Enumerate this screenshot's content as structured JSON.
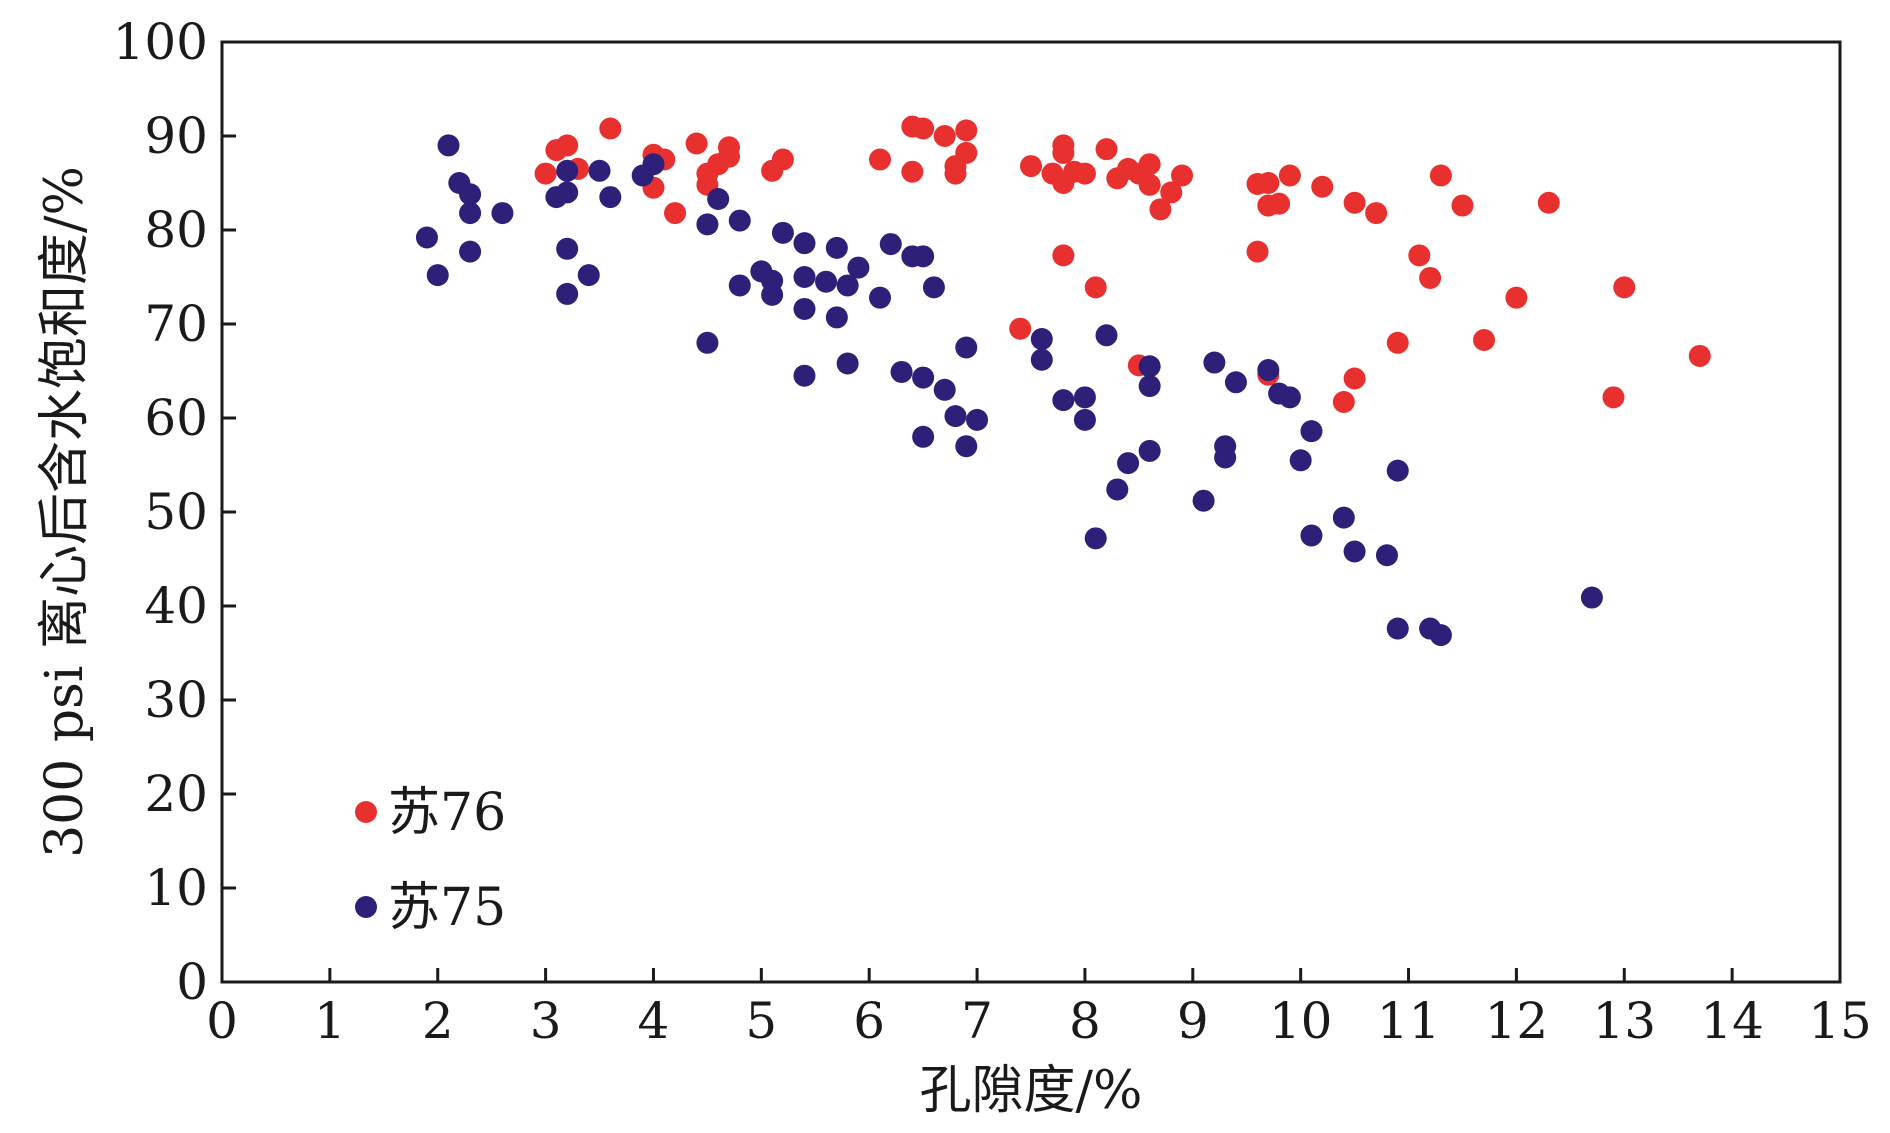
{
  "chart_data": {
    "type": "scatter",
    "xlabel": "孔隙度/%",
    "ylabel": "300 psi 离心后含水饱和度/%",
    "xlim": [
      0,
      15
    ],
    "ylim": [
      0,
      100
    ],
    "xticks": [
      0,
      1,
      2,
      3,
      4,
      5,
      6,
      7,
      8,
      9,
      10,
      11,
      12,
      13,
      14,
      15
    ],
    "yticks": [
      0,
      10,
      20,
      30,
      40,
      50,
      60,
      70,
      80,
      90,
      100
    ],
    "legend_position": "bottom-left",
    "series": [
      {
        "name": "苏76",
        "color": "#e8312f",
        "points": [
          [
            3.0,
            86.0
          ],
          [
            3.1,
            88.5
          ],
          [
            3.2,
            89.0
          ],
          [
            3.3,
            86.5
          ],
          [
            3.6,
            90.8
          ],
          [
            4.0,
            88.0
          ],
          [
            4.1,
            87.5
          ],
          [
            4.0,
            84.5
          ],
          [
            4.2,
            81.8
          ],
          [
            4.4,
            89.2
          ],
          [
            4.5,
            86.0
          ],
          [
            4.5,
            84.8
          ],
          [
            4.6,
            87.0
          ],
          [
            4.7,
            88.8
          ],
          [
            4.7,
            87.8
          ],
          [
            5.1,
            86.3
          ],
          [
            5.2,
            87.5
          ],
          [
            6.1,
            87.5
          ],
          [
            6.4,
            86.2
          ],
          [
            6.4,
            91.0
          ],
          [
            6.5,
            90.8
          ],
          [
            6.7,
            90.0
          ],
          [
            6.8,
            86.0
          ],
          [
            6.8,
            86.8
          ],
          [
            6.9,
            90.6
          ],
          [
            6.9,
            88.2
          ],
          [
            7.5,
            86.8
          ],
          [
            7.7,
            86.0
          ],
          [
            7.8,
            88.2
          ],
          [
            7.8,
            89.0
          ],
          [
            7.8,
            85.0
          ],
          [
            7.9,
            86.2
          ],
          [
            8.0,
            86.0
          ],
          [
            8.2,
            88.6
          ],
          [
            8.3,
            85.5
          ],
          [
            8.4,
            86.5
          ],
          [
            8.5,
            86.0
          ],
          [
            8.6,
            87.0
          ],
          [
            8.6,
            84.8
          ],
          [
            8.7,
            82.2
          ],
          [
            8.8,
            84.0
          ],
          [
            8.9,
            85.8
          ],
          [
            9.6,
            84.9
          ],
          [
            9.7,
            85.0
          ],
          [
            9.7,
            82.6
          ],
          [
            9.8,
            82.8
          ],
          [
            9.9,
            85.8
          ],
          [
            10.2,
            84.6
          ],
          [
            10.5,
            82.9
          ],
          [
            10.7,
            81.8
          ],
          [
            11.3,
            85.8
          ],
          [
            11.5,
            82.6
          ],
          [
            12.3,
            82.9
          ],
          [
            9.6,
            77.7
          ],
          [
            7.8,
            77.3
          ],
          [
            8.1,
            73.9
          ],
          [
            7.4,
            69.5
          ],
          [
            11.1,
            77.3
          ],
          [
            11.2,
            74.9
          ],
          [
            12.0,
            72.8
          ],
          [
            13.0,
            73.9
          ],
          [
            10.9,
            68.0
          ],
          [
            11.7,
            68.3
          ],
          [
            13.7,
            66.6
          ],
          [
            8.5,
            65.6
          ],
          [
            9.7,
            64.6
          ],
          [
            10.4,
            61.7
          ],
          [
            10.5,
            64.2
          ],
          [
            12.9,
            62.2
          ]
        ]
      },
      {
        "name": "苏75",
        "color": "#2e2079",
        "points": [
          [
            2.1,
            89.0
          ],
          [
            2.2,
            85.0
          ],
          [
            2.3,
            83.8
          ],
          [
            2.3,
            81.8
          ],
          [
            2.6,
            81.8
          ],
          [
            1.9,
            79.2
          ],
          [
            2.0,
            75.2
          ],
          [
            2.3,
            77.7
          ],
          [
            3.1,
            83.5
          ],
          [
            3.2,
            84.0
          ],
          [
            3.2,
            86.3
          ],
          [
            3.5,
            86.3
          ],
          [
            3.6,
            83.5
          ],
          [
            3.2,
            78.0
          ],
          [
            3.4,
            75.2
          ],
          [
            3.2,
            73.2
          ],
          [
            3.9,
            85.8
          ],
          [
            4.0,
            87.0
          ],
          [
            4.5,
            80.6
          ],
          [
            4.6,
            83.3
          ],
          [
            4.8,
            81.0
          ],
          [
            4.8,
            74.1
          ],
          [
            4.5,
            68.0
          ],
          [
            5.0,
            75.6
          ],
          [
            5.1,
            74.6
          ],
          [
            5.1,
            73.1
          ],
          [
            5.2,
            79.7
          ],
          [
            5.4,
            78.6
          ],
          [
            5.4,
            75.0
          ],
          [
            5.4,
            71.6
          ],
          [
            5.4,
            64.5
          ],
          [
            5.6,
            74.5
          ],
          [
            5.7,
            78.1
          ],
          [
            5.7,
            70.7
          ],
          [
            5.8,
            74.1
          ],
          [
            5.9,
            76.0
          ],
          [
            5.8,
            65.8
          ],
          [
            6.1,
            72.8
          ],
          [
            6.2,
            78.5
          ],
          [
            6.4,
            77.2
          ],
          [
            6.5,
            77.2
          ],
          [
            6.6,
            73.9
          ],
          [
            6.3,
            64.9
          ],
          [
            6.5,
            64.3
          ],
          [
            6.5,
            58.0
          ],
          [
            6.7,
            63.0
          ],
          [
            6.8,
            60.2
          ],
          [
            6.9,
            67.5
          ],
          [
            6.9,
            57.0
          ],
          [
            7.0,
            59.8
          ],
          [
            7.6,
            68.4
          ],
          [
            7.6,
            66.2
          ],
          [
            7.8,
            61.9
          ],
          [
            8.0,
            62.2
          ],
          [
            8.0,
            59.8
          ],
          [
            8.2,
            68.8
          ],
          [
            8.1,
            47.2
          ],
          [
            8.3,
            52.4
          ],
          [
            8.4,
            55.2
          ],
          [
            8.6,
            65.5
          ],
          [
            8.6,
            63.4
          ],
          [
            8.6,
            56.5
          ],
          [
            9.1,
            51.2
          ],
          [
            9.2,
            65.9
          ],
          [
            9.3,
            57.0
          ],
          [
            9.3,
            55.8
          ],
          [
            9.4,
            63.8
          ],
          [
            9.7,
            65.1
          ],
          [
            9.8,
            62.6
          ],
          [
            9.9,
            62.2
          ],
          [
            10.1,
            58.6
          ],
          [
            10.0,
            55.5
          ],
          [
            10.1,
            47.5
          ],
          [
            10.4,
            49.4
          ],
          [
            10.5,
            45.8
          ],
          [
            10.8,
            45.4
          ],
          [
            10.9,
            54.4
          ],
          [
            10.9,
            37.6
          ],
          [
            11.2,
            37.6
          ],
          [
            11.3,
            36.9
          ],
          [
            12.7,
            40.9
          ]
        ]
      }
    ]
  }
}
